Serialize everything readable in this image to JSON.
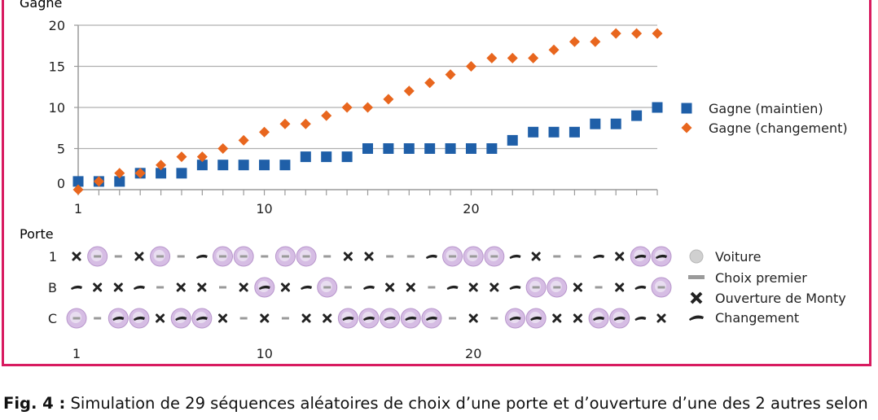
{
  "chart_data": [
    {
      "type": "scatter",
      "ylabel": "Gagne",
      "ylim": [
        0,
        20
      ],
      "yticks": [
        0,
        5,
        10,
        15,
        20
      ],
      "xlim": [
        1,
        29
      ],
      "xtick_labels": [
        "1",
        "10",
        "20"
      ],
      "grid": true,
      "legend": "right",
      "x": [
        1,
        2,
        3,
        4,
        5,
        6,
        7,
        8,
        9,
        10,
        11,
        12,
        13,
        14,
        15,
        16,
        17,
        18,
        19,
        20,
        21,
        22,
        23,
        24,
        25,
        26,
        27,
        28,
        29
      ],
      "series": [
        {
          "name": "Gagne (maintien)",
          "marker": "square",
          "color": "#1f5fa8",
          "values": [
            1,
            1,
            1,
            2,
            2,
            2,
            3,
            3,
            3,
            3,
            3,
            4,
            4,
            4,
            5,
            5,
            5,
            5,
            5,
            5,
            5,
            6,
            7,
            7,
            7,
            8,
            8,
            9,
            10
          ]
        },
        {
          "name": "Gagne (changement)",
          "marker": "diamond",
          "color": "#e8661e",
          "values": [
            0,
            1,
            2,
            2,
            3,
            4,
            4,
            5,
            6,
            7,
            8,
            8,
            9,
            10,
            10,
            11,
            12,
            13,
            14,
            15,
            16,
            16,
            16,
            17,
            18,
            18,
            19,
            19,
            19
          ]
        }
      ]
    },
    {
      "type": "table",
      "ylabel": "Porte",
      "row_labels": [
        "1",
        "B",
        "C"
      ],
      "xtick_labels": [
        "1",
        "10",
        "20"
      ],
      "legend": "right",
      "legend_items": [
        {
          "key": "V",
          "label": "Voiture"
        },
        {
          "key": "P",
          "label": "Choix premier"
        },
        {
          "key": "X",
          "label": "Ouverture de Monty"
        },
        {
          "key": "C",
          "label": "Changement"
        }
      ],
      "rows": [
        [
          "X",
          "VP",
          "P",
          "X",
          "VP",
          "P",
          "C",
          "VP",
          "VP",
          "P",
          "VP",
          "VP",
          "P",
          "X",
          "X",
          "P",
          "P",
          "C",
          "VP",
          "VP",
          "VP",
          "C",
          "X",
          "P",
          "P",
          "C",
          "X",
          "VC",
          "VC"
        ],
        [
          "C",
          "X",
          "X",
          "C",
          "P",
          "X",
          "X",
          "P",
          "X",
          "VC",
          "X",
          "C",
          "VP",
          "P",
          "C",
          "X",
          "X",
          "P",
          "C",
          "X",
          "X",
          "C",
          "VP",
          "VP",
          "X",
          "P",
          "X",
          "C",
          "VP"
        ],
        [
          "VP",
          "P",
          "VC",
          "VC",
          "X",
          "VC",
          "VC",
          "X",
          "P",
          "X",
          "P",
          "X",
          "X",
          "VC",
          "VC",
          "VC",
          "VC",
          "VC",
          "P",
          "X",
          "P",
          "VC",
          "VC",
          "X",
          "X",
          "VC",
          "VC",
          "C",
          "X"
        ]
      ]
    }
  ],
  "caption": {
    "label": "Fig. 4 :",
    "text": " Simulation de 29 séquences aléatoires de choix d’une porte et d’ouverture d’une des 2 autres selon"
  }
}
